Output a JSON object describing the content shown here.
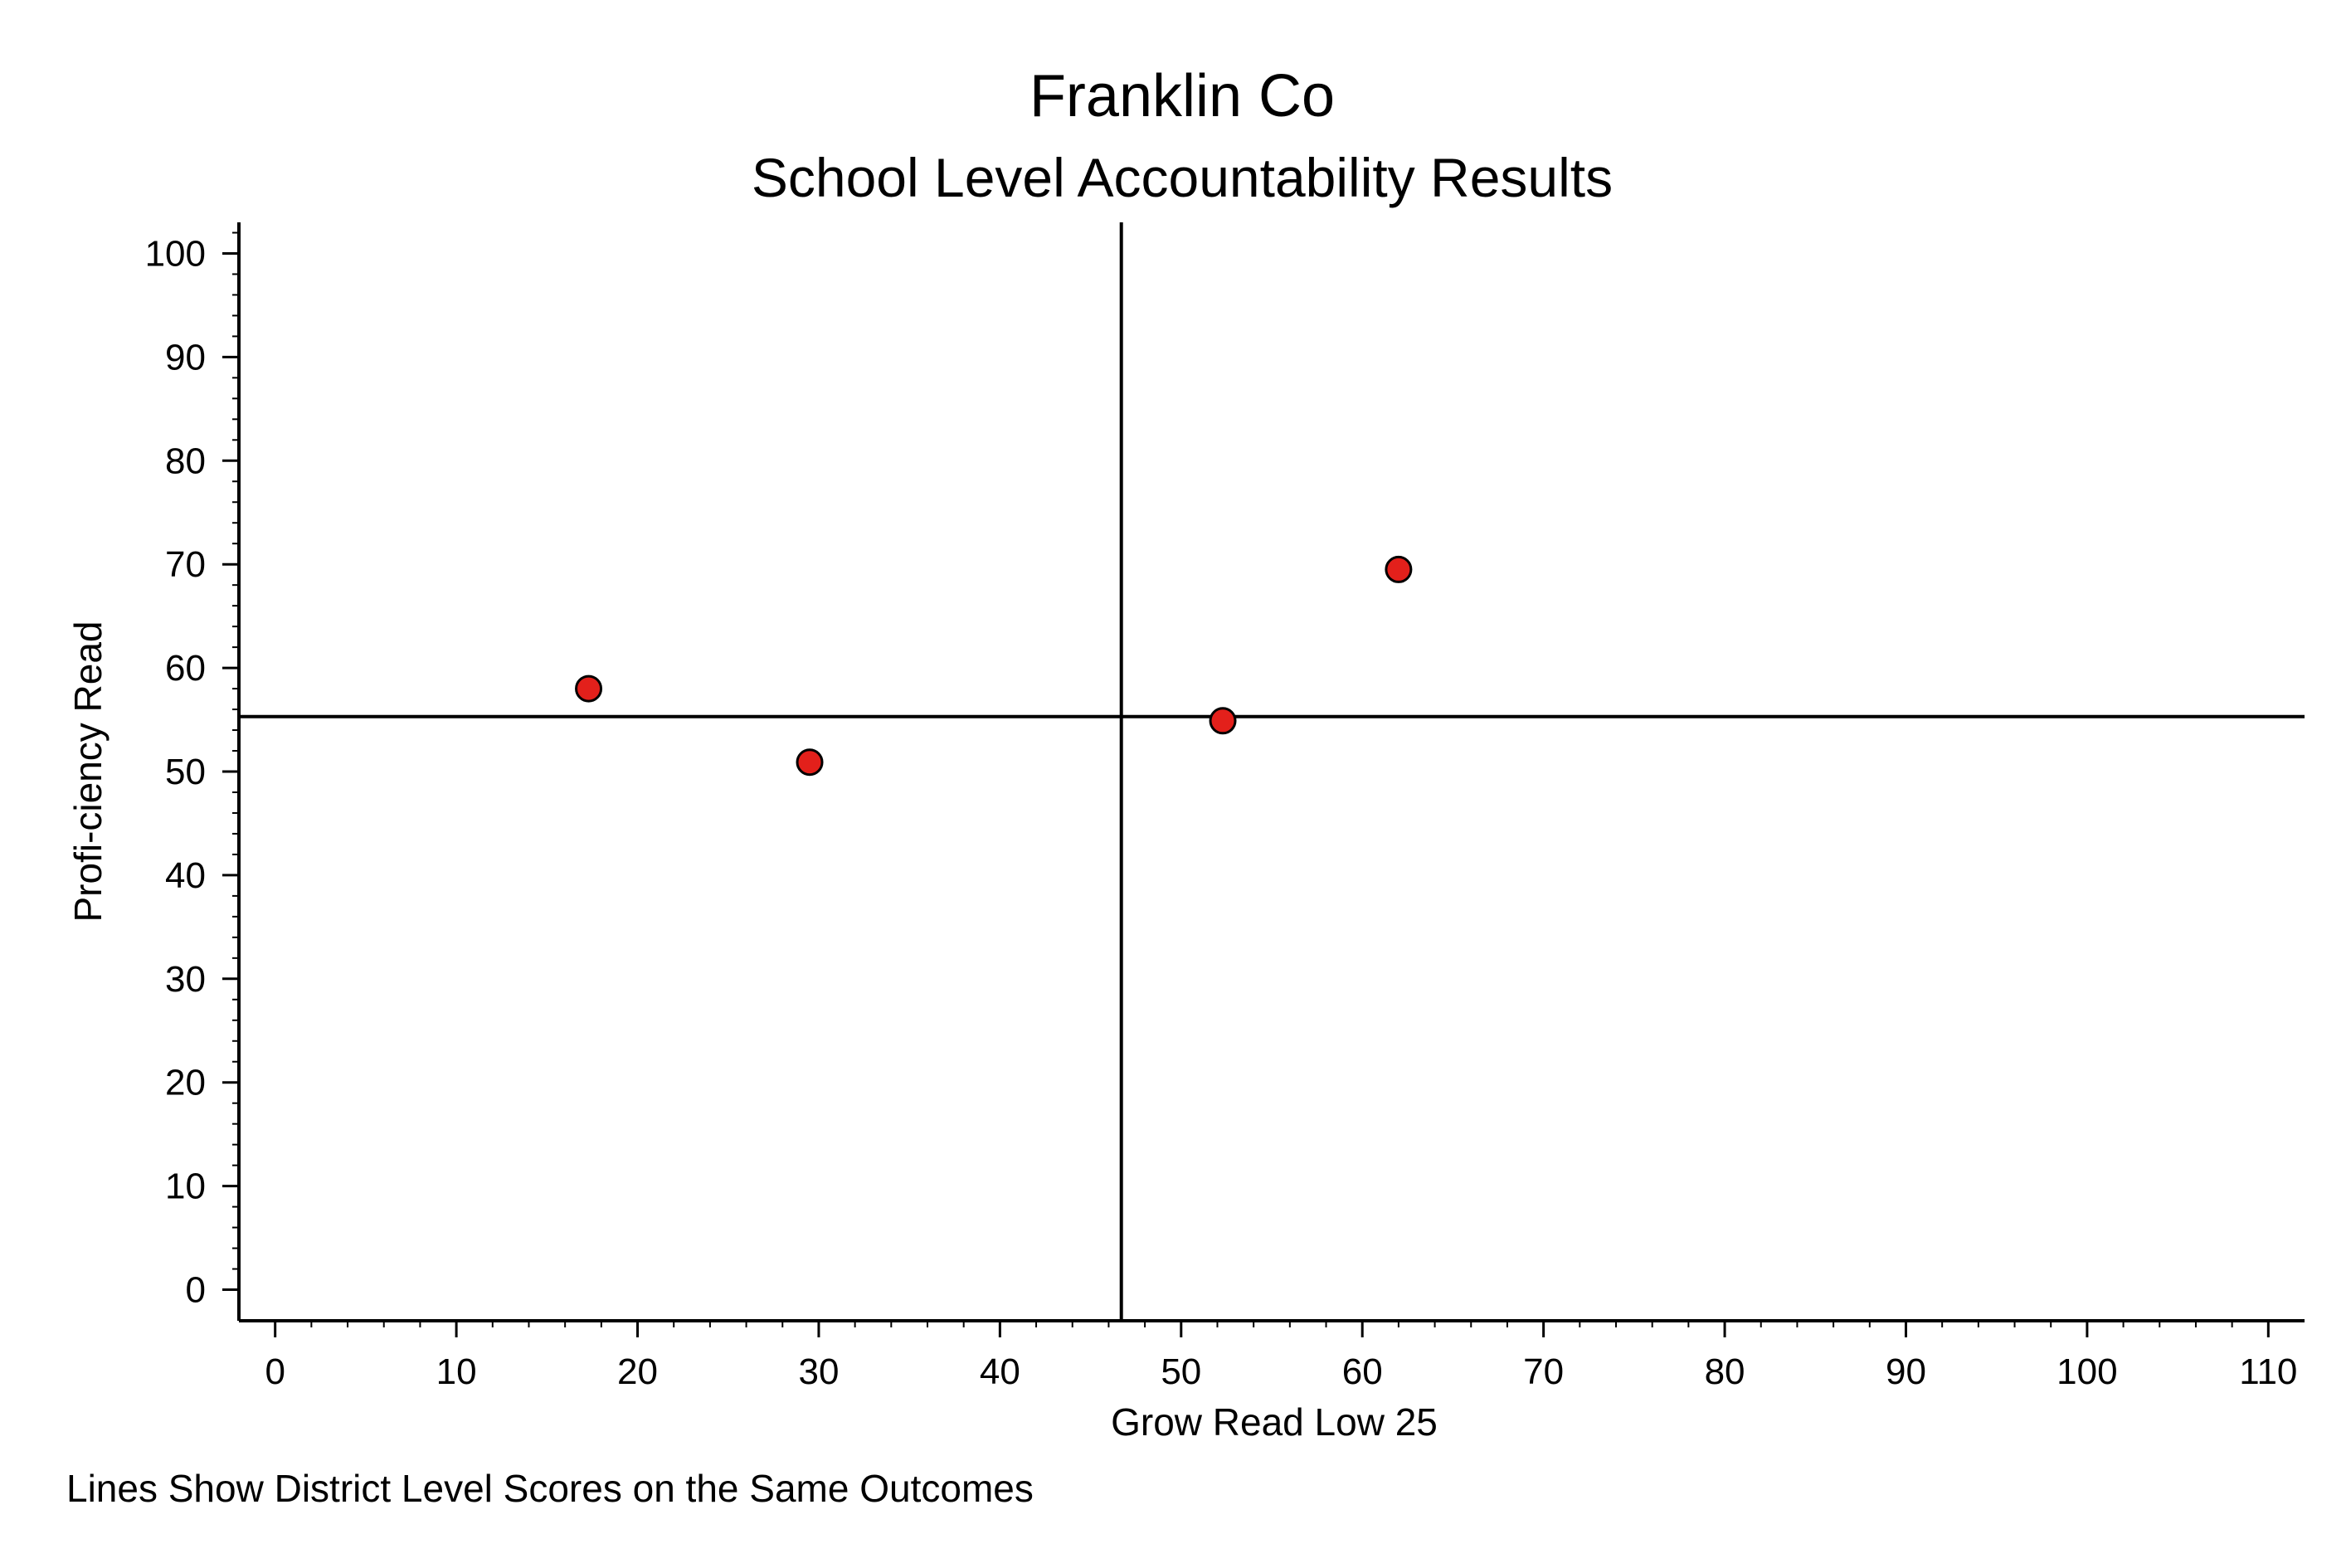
{
  "chart_data": {
    "type": "scatter",
    "title": "Franklin Co",
    "subtitle": "School Level Accountability Results",
    "xlabel": "Grow Read Low 25",
    "ylabel": "Profi-ciency Read",
    "note": "Lines Show District Level Scores on the Same Outcomes",
    "xlim": [
      -2,
      112
    ],
    "ylim": [
      -3,
      103
    ],
    "x_ticks": [
      0,
      10,
      20,
      30,
      40,
      50,
      60,
      70,
      80,
      90,
      100,
      110
    ],
    "y_ticks": [
      0,
      10,
      20,
      30,
      40,
      50,
      60,
      70,
      80,
      90,
      100
    ],
    "grid": false,
    "reference_lines": {
      "x": 46.7,
      "y": 55.3
    },
    "points": [
      {
        "x": 17.3,
        "y": 58.0
      },
      {
        "x": 29.5,
        "y": 50.9
      },
      {
        "x": 52.3,
        "y": 54.9
      },
      {
        "x": 62.0,
        "y": 69.5
      }
    ],
    "colors": {
      "marker_fill": "#e3201b",
      "marker_stroke": "#000000",
      "line": "#000000"
    }
  }
}
